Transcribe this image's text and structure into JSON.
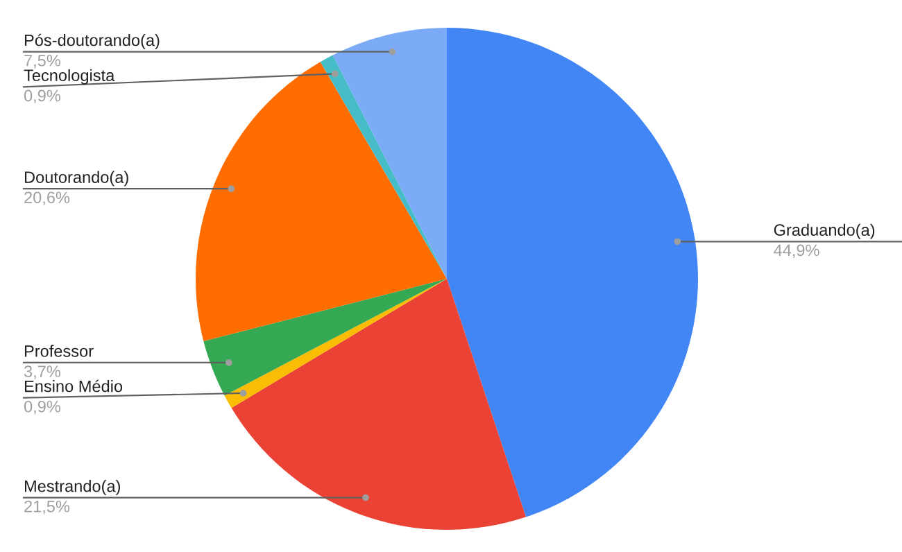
{
  "chart_data": {
    "type": "pie",
    "categories": [
      "Graduando(a)",
      "Mestrando(a)",
      "Ensino Médio",
      "Professor",
      "Doutorando(a)",
      "Tecnologista",
      "Pós-doutorando(a)"
    ],
    "values": [
      44.9,
      21.5,
      0.9,
      3.7,
      20.6,
      0.9,
      7.5
    ],
    "value_labels": [
      "44,9%",
      "21,5%",
      "0,9%",
      "3,7%",
      "20,6%",
      "0,9%",
      "7,5%"
    ],
    "colors": [
      "#4285f4",
      "#ea4335",
      "#fbbc04",
      "#34a853",
      "#ff6d01",
      "#46bdc6",
      "#7baaf7"
    ]
  }
}
